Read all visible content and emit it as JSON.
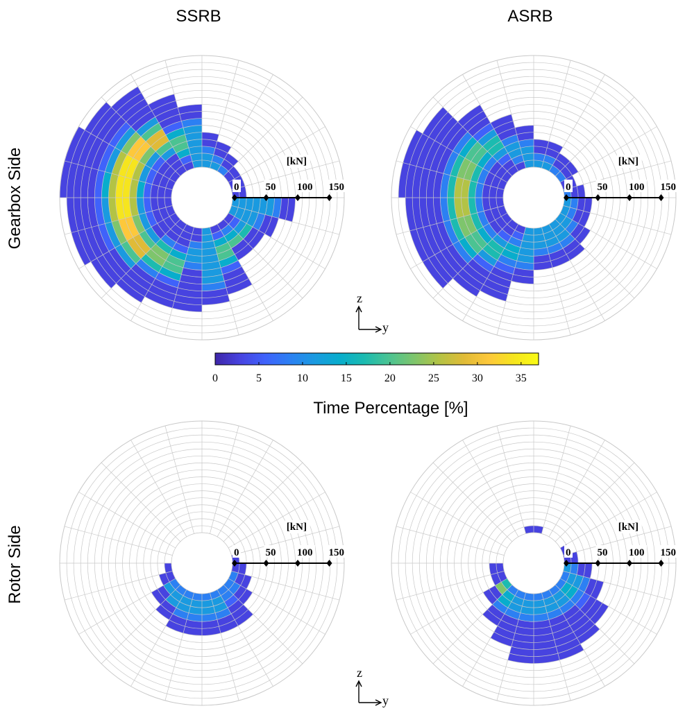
{
  "columns": [
    "SSRB",
    "ASRB"
  ],
  "rows": [
    "Gearbox Side",
    "Rotor Side"
  ],
  "colorbar": {
    "label": "Time Percentage [%]",
    "min": 0,
    "max": 37,
    "ticks": [
      0,
      5,
      10,
      15,
      20,
      25,
      30,
      35
    ]
  },
  "radial_axis": {
    "unit": "[kN]",
    "ticks": [
      "0",
      "50",
      "100",
      "150"
    ]
  },
  "axis_icon": {
    "vertical": "z",
    "horizontal": "y"
  },
  "colormap": [
    "#3e26a8",
    "#4743e0",
    "#3f62fb",
    "#2c80f3",
    "#1a9ae0",
    "#08adcc",
    "#1cbbb0",
    "#4bc392",
    "#7ec56c",
    "#b3c345",
    "#e0bb37",
    "#fdc83b",
    "#f6e51e",
    "#f9fb15"
  ],
  "chart_data": [
    {
      "type": "heatmap",
      "subtype": "polar",
      "panel": "Gearbox Side / SSRB",
      "radial_unit": "kN",
      "radial_range": [
        0,
        160
      ],
      "bin_width_deg": 15,
      "bin_width_kN": 10,
      "profile": {
        "outer_kN": [
          20,
          20,
          20,
          30,
          40,
          50,
          90,
          110,
          140,
          150,
          160,
          160,
          150,
          150,
          140,
          130,
          120,
          120,
          110,
          100,
          60,
          60,
          70,
          90
        ],
        "peak_kN": [
          0,
          0,
          0,
          0,
          0,
          0,
          0,
          40,
          60,
          70,
          70,
          70,
          70,
          70,
          70,
          60,
          60,
          40,
          0,
          40,
          40,
          40,
          0,
          0
        ],
        "peak_value": [
          0,
          0,
          0,
          0,
          0,
          0,
          0,
          20,
          30,
          34,
          36,
          37,
          36,
          34,
          30,
          24,
          20,
          12,
          0,
          20,
          22,
          18,
          0,
          0
        ]
      }
    },
    {
      "type": "heatmap",
      "subtype": "polar",
      "panel": "Gearbox Side / ASRB",
      "radial_unit": "kN",
      "radial_range": [
        0,
        160
      ],
      "bin_width_deg": 15,
      "bin_width_kN": 10,
      "profile": {
        "outer_kN": [
          30,
          20,
          30,
          30,
          40,
          40,
          60,
          80,
          110,
          140,
          150,
          150,
          140,
          140,
          140,
          120,
          110,
          80,
          60,
          60,
          60,
          50,
          40,
          40
        ],
        "peak_kN": [
          0,
          0,
          0,
          0,
          0,
          0,
          0,
          30,
          50,
          60,
          60,
          60,
          60,
          60,
          60,
          50,
          40,
          0,
          0,
          0,
          0,
          0,
          0,
          0
        ],
        "peak_value": [
          0,
          0,
          0,
          0,
          0,
          0,
          0,
          12,
          18,
          22,
          24,
          26,
          26,
          25,
          22,
          18,
          14,
          0,
          0,
          0,
          0,
          0,
          0,
          0
        ]
      }
    },
    {
      "type": "heatmap",
      "subtype": "polar",
      "panel": "Rotor Side / SSRB",
      "radial_unit": "kN",
      "radial_range": [
        0,
        160
      ],
      "bin_width_deg": 15,
      "bin_width_kN": 10,
      "profile": {
        "outer_kN": [
          10,
          0,
          0,
          0,
          0,
          0,
          0,
          0,
          0,
          0,
          0,
          0,
          10,
          20,
          40,
          50,
          60,
          60,
          60,
          60,
          60,
          40,
          30,
          20
        ],
        "peak_kN": [
          0,
          0,
          0,
          0,
          0,
          0,
          0,
          0,
          0,
          0,
          0,
          0,
          0,
          10,
          20,
          20,
          20,
          20,
          20,
          20,
          10,
          10,
          0,
          0
        ],
        "peak_value": [
          0,
          0,
          0,
          0,
          0,
          0,
          0,
          0,
          0,
          0,
          0,
          0,
          0,
          10,
          12,
          12,
          13,
          13,
          12,
          11,
          10,
          8,
          0,
          0
        ]
      }
    },
    {
      "type": "heatmap",
      "subtype": "polar",
      "panel": "Rotor Side / ASRB",
      "radial_unit": "kN",
      "radial_range": [
        0,
        160
      ],
      "bin_width_deg": 15,
      "bin_width_kN": 10,
      "profile": {
        "outer_kN": [
          20,
          10,
          0,
          0,
          0,
          10,
          10,
          0,
          0,
          0,
          0,
          0,
          20,
          20,
          40,
          60,
          80,
          100,
          100,
          100,
          90,
          80,
          60,
          40
        ],
        "peak_kN": [
          0,
          0,
          0,
          0,
          0,
          0,
          0,
          0,
          0,
          0,
          0,
          0,
          0,
          0,
          20,
          20,
          20,
          20,
          20,
          20,
          20,
          20,
          20,
          0
        ],
        "peak_value": [
          0,
          0,
          0,
          0,
          0,
          0,
          0,
          0,
          0,
          0,
          0,
          0,
          0,
          0,
          24,
          14,
          12,
          12,
          12,
          12,
          12,
          14,
          12,
          0
        ]
      }
    }
  ]
}
